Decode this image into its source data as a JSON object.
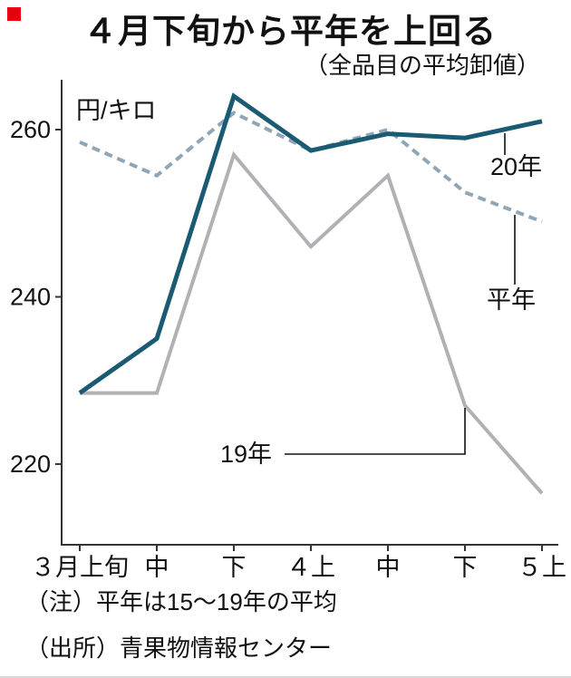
{
  "accent": {
    "red": "#e60012"
  },
  "header": {
    "title": "４月下旬から平年を上回る",
    "subtitle": "（全品目の平均卸値）"
  },
  "chart_data": {
    "type": "line",
    "title": "４月下旬から平年を上回る",
    "subtitle": "（全品目の平均卸値）",
    "unit_label": "円/キロ",
    "categories": [
      "３月上旬",
      "中",
      "下",
      "４上",
      "中",
      "下",
      "５上"
    ],
    "y_ticks": [
      220,
      240,
      260
    ],
    "ylim": [
      214,
      266
    ],
    "grid": false,
    "legend_position": "inline-labels",
    "series": [
      {
        "name": "20年",
        "color": "#1a5a73",
        "style": "solid",
        "width": 5,
        "values": [
          228.5,
          235,
          264,
          257.5,
          259.5,
          259,
          261
        ]
      },
      {
        "name": "平年",
        "color": "#8fa6b6",
        "style": "dashed",
        "width": 4,
        "values": [
          258.5,
          254.5,
          262,
          257.5,
          260,
          252.5,
          249
        ]
      },
      {
        "name": "19年",
        "color": "#b0b1b5",
        "style": "solid",
        "width": 4,
        "values": [
          228.5,
          228.5,
          257,
          246,
          254.5,
          227,
          216.5
        ]
      }
    ]
  },
  "notes": [
    "（注）平年は15〜19年の平均",
    "（出所）青果物情報センター"
  ]
}
